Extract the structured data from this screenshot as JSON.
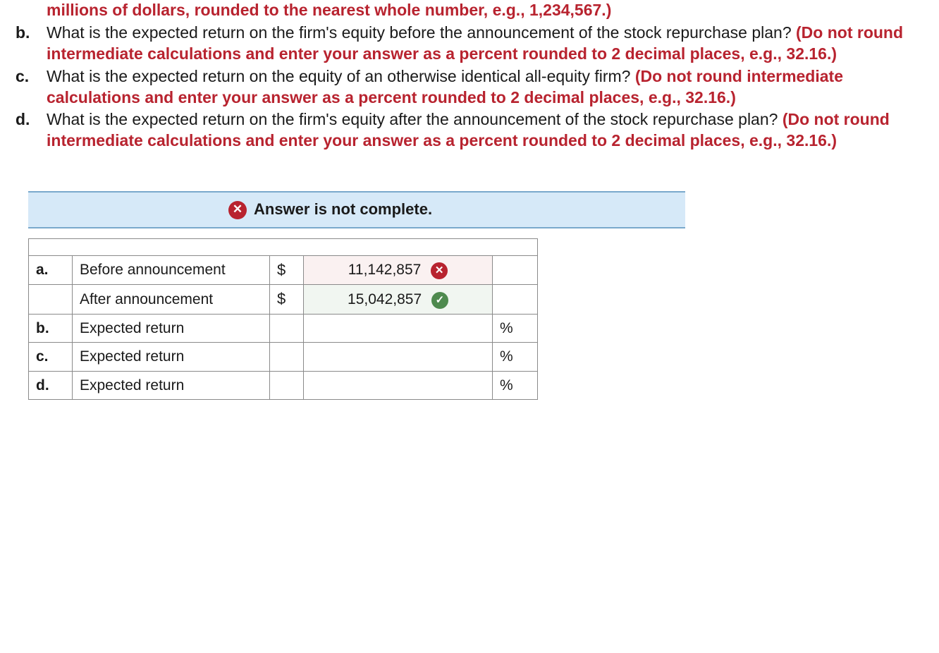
{
  "colors": {
    "instruction": "#b8232f",
    "text": "#1a1a1a",
    "status_bg": "#d6e9f8",
    "status_border": "#7aa9cc",
    "wrong_bg": "#faf1f1",
    "correct_bg": "#f1f6f1",
    "wrong_mark": "#b8232f",
    "correct_mark": "#4f8a4f",
    "table_border": "#8a8a8a"
  },
  "questions": {
    "a_tail": "millions of dollars, rounded to the nearest whole number, e.g., 1,234,567.)",
    "b": {
      "letter": "b.",
      "text": "What is the expected return on the firm's equity before the announcement of the stock repurchase plan? ",
      "instruction": "(Do not round intermediate calculations and enter your answer as a percent rounded to 2 decimal places, e.g., 32.16.)"
    },
    "c": {
      "letter": "c.",
      "text": "What is the expected return on the equity of an otherwise identical all-equity firm? ",
      "instruction": "(Do not round intermediate calculations and enter your answer as a percent rounded to 2 decimal places, e.g., 32.16.)"
    },
    "d": {
      "letter": "d.",
      "text": "What is the expected return on the firm's equity after the announcement of the stock repurchase plan? ",
      "instruction": "(Do not round intermediate calculations and enter your answer as a percent rounded to 2 decimal places, e.g., 32.16.)"
    }
  },
  "status": {
    "icon": "✕",
    "text": "Answer is not complete."
  },
  "table": {
    "rows": [
      {
        "letter": "a.",
        "label": "Before announcement",
        "symbol": "$",
        "value": "11,142,857",
        "mark": "wrong",
        "unit": ""
      },
      {
        "letter": "",
        "label": "After announcement",
        "symbol": "$",
        "value": "15,042,857",
        "mark": "correct",
        "unit": ""
      },
      {
        "letter": "b.",
        "label": "Expected return",
        "symbol": "",
        "value": "",
        "mark": "",
        "unit": "%"
      },
      {
        "letter": "c.",
        "label": "Expected return",
        "symbol": "",
        "value": "",
        "mark": "",
        "unit": "%"
      },
      {
        "letter": "d.",
        "label": "Expected return",
        "symbol": "",
        "value": "",
        "mark": "",
        "unit": "%"
      }
    ]
  }
}
